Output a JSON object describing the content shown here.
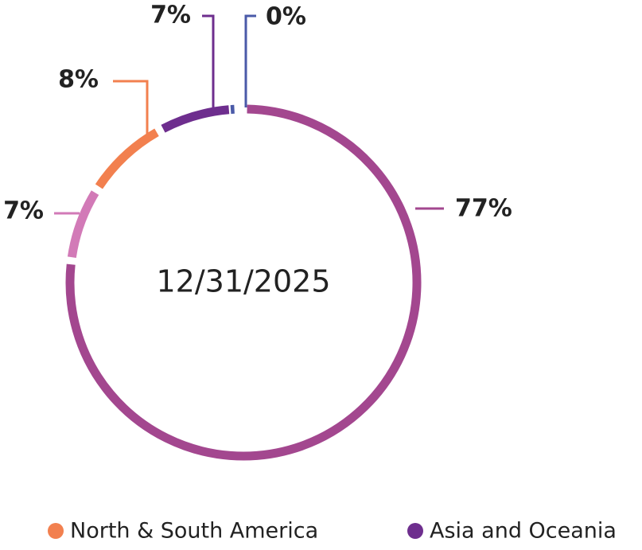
{
  "chart_data": {
    "type": "donut",
    "annotation": "12/31/2025",
    "categories": [
      null,
      null,
      "North & South America",
      "Asia and Oceania",
      null
    ],
    "values": [
      77,
      7,
      8,
      7,
      0
    ],
    "value_labels": [
      "77%",
      "7%",
      "8%",
      "7%",
      "0%"
    ],
    "colors": [
      "#a3478f",
      "#d27ab7",
      "#f2804f",
      "#6e2e8e",
      "#4a5aa8"
    ]
  }
}
